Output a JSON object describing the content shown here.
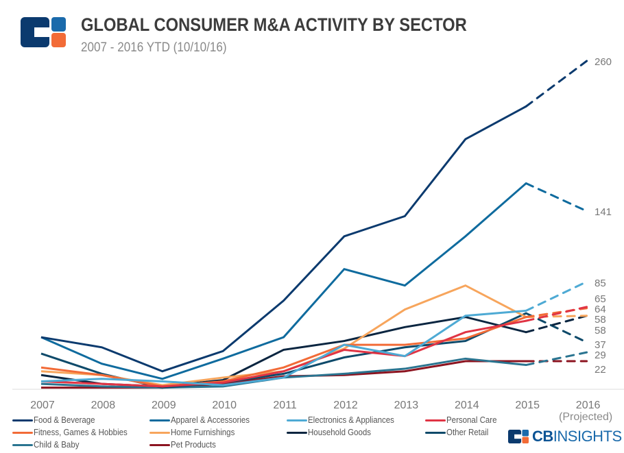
{
  "header": {
    "title": "GLOBAL CONSUMER M&A ACTIVITY BY SECTOR",
    "subtitle": "2007 - 2016 YTD (10/10/16)",
    "logo_icon": "cb-insights-logo-icon"
  },
  "footer": {
    "projected_note": "(Projected)",
    "brand_bold": "CB",
    "brand_thin": "INSIGHTS"
  },
  "colors": {
    "logo_navy": "#0b3a6e",
    "logo_blue": "#1a6aab",
    "logo_orange": "#f26b37"
  },
  "chart_data": {
    "type": "line",
    "title": "GLOBAL CONSUMER M&A ACTIVITY BY SECTOR",
    "subtitle": "2007 - 2016 YTD (10/10/16)",
    "xlabel": "",
    "ylabel": "",
    "x": [
      "2007",
      "2008",
      "2009",
      "2010",
      "2011",
      "2012",
      "2013",
      "2014",
      "2015",
      "2016"
    ],
    "x_note_last": "(Projected)",
    "projected_from_index": 8,
    "ylim": [
      0,
      260
    ],
    "grid": false,
    "legend_position": "bottom",
    "end_labels": true,
    "series": [
      {
        "name": "Food & Beverage",
        "color": "#0b3a6e",
        "values": [
          41,
          33,
          14,
          30,
          70,
          121,
          137,
          198,
          224,
          260
        ],
        "end_label": "260"
      },
      {
        "name": "Apparel & Accessories",
        "color": "#0f6b9e",
        "values": [
          41,
          20,
          8,
          24,
          41,
          95,
          82,
          121,
          163,
          141
        ],
        "end_label": "141"
      },
      {
        "name": "Electronics & Appliances",
        "color": "#4eaad4",
        "values": [
          6,
          8,
          6,
          3,
          9,
          35,
          26,
          58,
          62,
          85
        ],
        "end_label": "85"
      },
      {
        "name": "Personal Care",
        "color": "#e03444",
        "values": [
          6,
          4,
          2,
          5,
          14,
          31,
          26,
          45,
          54,
          65
        ],
        "end_label": "65"
      },
      {
        "name": "Fitness, Games & Hobbies",
        "color": "#f26b37",
        "values": [
          17,
          11,
          2,
          6,
          17,
          35,
          35,
          40,
          57,
          64
        ],
        "end_label": "64"
      },
      {
        "name": "Home Furnishings",
        "color": "#f7a55c",
        "values": [
          14,
          11,
          3,
          9,
          14,
          32,
          63,
          82,
          57,
          58
        ],
        "end_label": "58"
      },
      {
        "name": "Household Goods",
        "color": "#0a2540",
        "values": [
          11,
          4,
          2,
          7,
          31,
          38,
          49,
          57,
          45,
          58
        ],
        "end_label": "58"
      },
      {
        "name": "Other Retail",
        "color": "#0e4a6a",
        "values": [
          28,
          12,
          1,
          5,
          12,
          25,
          33,
          38,
          60,
          37
        ],
        "end_label": "37"
      },
      {
        "name": "Child & Baby",
        "color": "#2a7490",
        "values": [
          4,
          2,
          1,
          2,
          9,
          12,
          16,
          24,
          19,
          29
        ],
        "end_label": "29"
      },
      {
        "name": "Pet Products",
        "color": "#8c1420",
        "values": [
          1,
          1,
          1,
          4,
          10,
          11,
          14,
          22,
          22,
          22
        ],
        "end_label": "22"
      }
    ]
  }
}
